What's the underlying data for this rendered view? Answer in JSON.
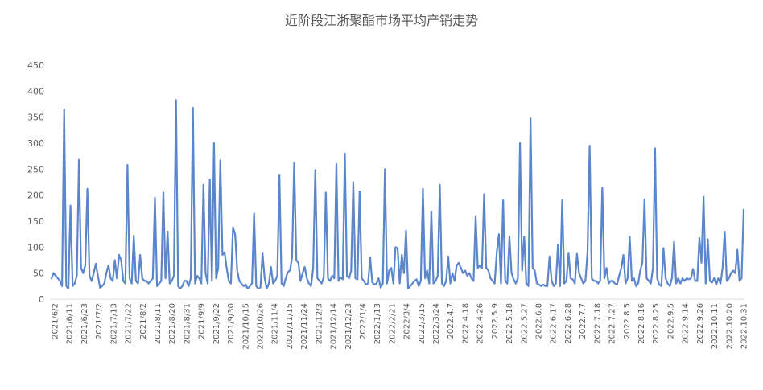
{
  "chart_data": {
    "type": "line",
    "title": "近阶段江浙聚酯市场平均产销走势",
    "xlabel": "",
    "ylabel": "",
    "ylim": [
      0,
      450
    ],
    "yticks": [
      0,
      50,
      100,
      150,
      200,
      250,
      300,
      350,
      400,
      450
    ],
    "grid": false,
    "legend": "none",
    "line_color": "#5B86CC",
    "x_tick_labels": [
      "2021/6/2",
      "2021/6/11",
      "2021/6/23",
      "2021/7/2",
      "2021/7/13",
      "2021/7/22",
      "2021/8/2",
      "2021/8/11",
      "2021/8/20",
      "2021/8/31",
      "2021/9/9",
      "2021/9/22",
      "2021/9/30",
      "2021/10/15",
      "2021/10/26",
      "2021/11/4",
      "2021/11/15",
      "2021/11/24",
      "2021/12/3",
      "2021/12/14",
      "2021/12/23",
      "2022/1/4",
      "2022/1/13",
      "2022/2/21",
      "2022/3/4",
      "2022/3/15",
      "2022/3/24",
      "2022.4.7",
      "2022.4.18",
      "2022.4.26",
      "2022.5.9",
      "2022.5.18",
      "2022.5.27",
      "2022.6.8",
      "2022.6.17",
      "2022.6.28",
      "2022.7.7",
      "2022.7.18",
      "2022.7.27",
      "2022.8.5",
      "2022.8.16",
      "2022.8.25",
      "2022.9.5",
      "2022.9.14",
      "2022.9.26",
      "2022.10.11",
      "2022.10.20",
      "2022.10.31"
    ],
    "series": [
      {
        "values": [
          40,
          50,
          45,
          40,
          35,
          25,
          365,
          25,
          20,
          180,
          25,
          30,
          45,
          268,
          60,
          50,
          65,
          212,
          45,
          35,
          50,
          68,
          45,
          22,
          25,
          30,
          50,
          65,
          40,
          35,
          75,
          40,
          85,
          75,
          35,
          30,
          258,
          40,
          30,
          122,
          35,
          30,
          85,
          40,
          35,
          35,
          30,
          35,
          40,
          195,
          25,
          30,
          35,
          205,
          40,
          130,
          30,
          35,
          45,
          383,
          25,
          20,
          25,
          35,
          35,
          25,
          40,
          368,
          30,
          45,
          40,
          30,
          220,
          50,
          30,
          230,
          35,
          300,
          40,
          60,
          267,
          85,
          90,
          60,
          35,
          30,
          138,
          125,
          55,
          35,
          30,
          25,
          28,
          20,
          25,
          30,
          165,
          25,
          20,
          22,
          88,
          40,
          20,
          30,
          62,
          30,
          35,
          45,
          238,
          30,
          25,
          40,
          52,
          55,
          80,
          262,
          75,
          70,
          35,
          50,
          62,
          40,
          30,
          25,
          60,
          248,
          40,
          35,
          30,
          42,
          205,
          40,
          35,
          45,
          40,
          260,
          35,
          42,
          38,
          280,
          45,
          40,
          55,
          225,
          40,
          38,
          207,
          40,
          35,
          28,
          30,
          80,
          32,
          28,
          30,
          40,
          22,
          30,
          250,
          30,
          55,
          60,
          30,
          100,
          98,
          30,
          85,
          50,
          132,
          20,
          25,
          30,
          35,
          38,
          25,
          35,
          212,
          40,
          55,
          30,
          168,
          30,
          35,
          45,
          220,
          30,
          25,
          35,
          82,
          30,
          50,
          35,
          65,
          70,
          60,
          50,
          55,
          45,
          50,
          40,
          35,
          160,
          60,
          65,
          60,
          202,
          60,
          55,
          40,
          35,
          30,
          90,
          125,
          30,
          190,
          35,
          30,
          120,
          50,
          38,
          30,
          40,
          300,
          55,
          120,
          30,
          25,
          348,
          60,
          55,
          30,
          28,
          25,
          28,
          25,
          25,
          82,
          35,
          25,
          30,
          105,
          25,
          190,
          30,
          35,
          88,
          40,
          38,
          30,
          87,
          50,
          40,
          30,
          35,
          90,
          295,
          40,
          35,
          35,
          30,
          35,
          215,
          40,
          60,
          30,
          35,
          35,
          30,
          28,
          45,
          60,
          85,
          30,
          40,
          120,
          35,
          40,
          25,
          30,
          55,
          70,
          192,
          40,
          35,
          30,
          60,
          290,
          40,
          28,
          25,
          98,
          40,
          30,
          25,
          40,
          110,
          30,
          40,
          30,
          40,
          35,
          40,
          38,
          40,
          58,
          35,
          35,
          118,
          70,
          197,
          30,
          115,
          35,
          32,
          40,
          28,
          40,
          30,
          60,
          130,
          35,
          40,
          50,
          55,
          50,
          95,
          35,
          40,
          172
        ]
      }
    ]
  }
}
